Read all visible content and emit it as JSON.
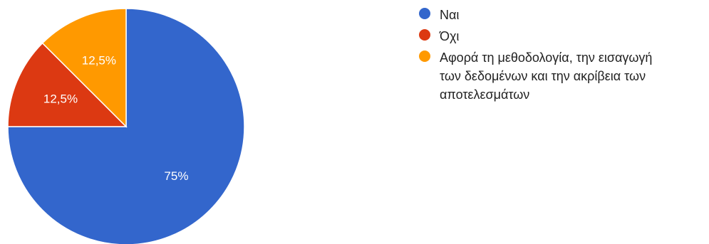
{
  "chart_data": {
    "type": "pie",
    "start_angle_deg": 0,
    "direction": "clockwise",
    "legend_position": "right",
    "slices": [
      {
        "label": "Ναι",
        "value": 75,
        "display": "75%",
        "color": "#3366cc"
      },
      {
        "label": "Όχι",
        "value": 12.5,
        "display": "12,5%",
        "color": "#dc3912"
      },
      {
        "label": "Αφορά τη μεθοδολογία, την εισαγωγή των δεδομένων και την ακρίβεια των αποτελεσμάτων",
        "value": 12.5,
        "display": "12,5%",
        "color": "#ff9900"
      }
    ]
  }
}
